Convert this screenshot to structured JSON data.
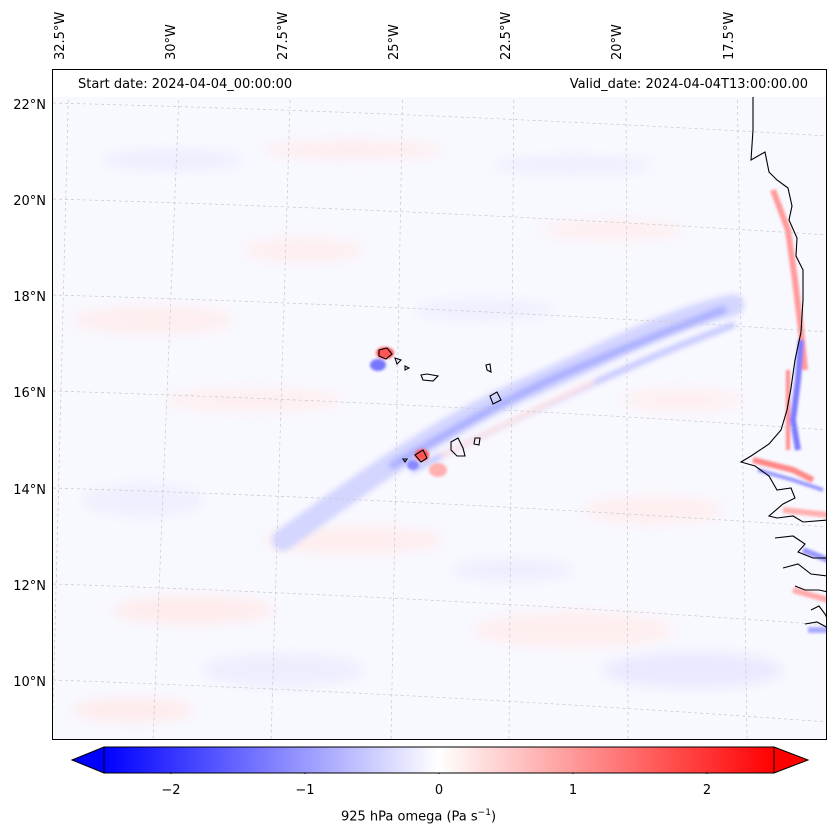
{
  "header": {
    "start_date": "Start date: 2024-04-04_00:00:00",
    "valid_date": "Valid_date: 2024-04-04T13:00:00.00"
  },
  "map": {
    "longitude_labels": [
      "32.5°W",
      "30°W",
      "27.5°W",
      "25°W",
      "22.5°W",
      "20°W",
      "17.5°W"
    ],
    "latitude_labels": [
      "22°N",
      "20°N",
      "18°N",
      "16°N",
      "14°N",
      "12°N",
      "10°N"
    ],
    "field": "925 hPa omega",
    "colormap": "bwr",
    "colors": {
      "negative": "#0000ff",
      "zero": "#ffffff",
      "positive": "#ff0000",
      "coastline": "#000000",
      "gridline": "#bbbbbb"
    }
  },
  "colorbar": {
    "tick_labels": [
      "−2",
      "−1",
      "0",
      "1",
      "2"
    ],
    "tick_values": [
      -2,
      -1,
      0,
      1,
      2
    ],
    "range": [
      -2.5,
      2.5
    ],
    "label_text": "925 hPa omega (Pa s",
    "label_sup": "−1",
    "label_close": ")"
  }
}
